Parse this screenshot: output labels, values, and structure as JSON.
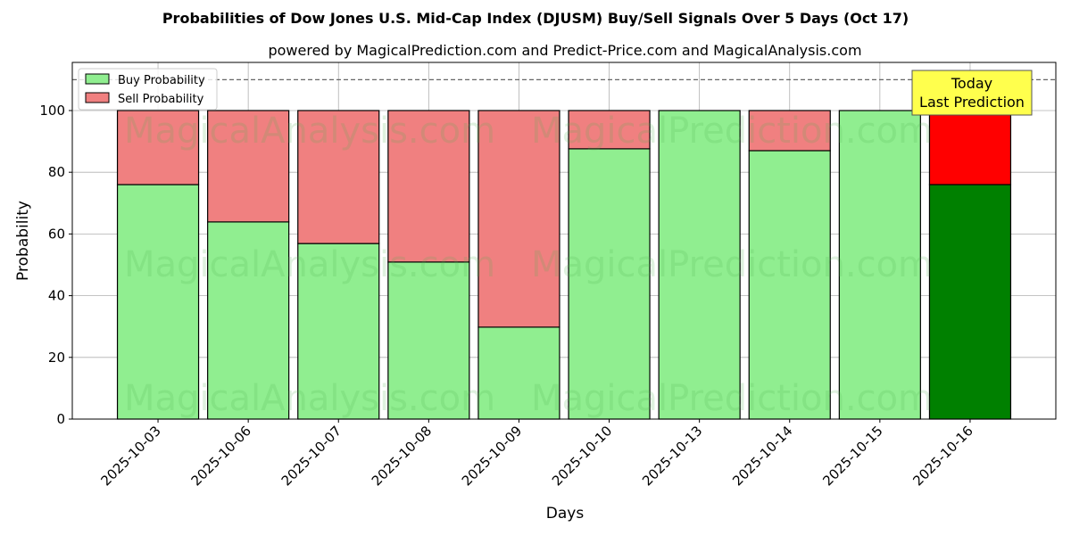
{
  "chart_data": {
    "type": "bar",
    "stacked": true,
    "title": "Probabilities of Dow Jones U.S. Mid-Cap Index (DJUSM) Buy/Sell Signals Over 5 Days (Oct 17)",
    "subtitle": "powered by MagicalPrediction.com and Predict-Price.com and MagicalAnalysis.com",
    "xlabel": "Days",
    "ylabel": "Probability",
    "ylim": [
      0,
      115.6
    ],
    "xlim": [
      -0.95,
      9.95
    ],
    "yticks": [
      0,
      20,
      40,
      60,
      80,
      100
    ],
    "grid": true,
    "legend_position": "top-left",
    "categories": [
      "2025-10-03",
      "2025-10-06",
      "2025-10-07",
      "2025-10-08",
      "2025-10-09",
      "2025-10-10",
      "2025-10-13",
      "2025-10-14",
      "2025-10-15",
      "2025-10-16"
    ],
    "series": [
      {
        "name": "Buy Probability",
        "color": "#90ee90",
        "values": [
          76.0,
          63.9,
          56.9,
          50.9,
          29.8,
          87.6,
          100,
          87.0,
          100,
          76.0
        ]
      },
      {
        "name": "Sell Probability",
        "color": "#f08080",
        "values": [
          24.0,
          36.1,
          43.1,
          49.1,
          70.2,
          12.4,
          0,
          13.0,
          0,
          24.0
        ]
      }
    ],
    "highlight": {
      "index": 9,
      "buy_color": "#008000",
      "sell_color": "#ff0000"
    },
    "reference_line": {
      "y": 110,
      "style": "dashed"
    },
    "annotation": {
      "lines": [
        "Today",
        "Last Prediction"
      ],
      "background": "#ffff4d"
    },
    "watermarks": [
      "MagicalAnalysis.com",
      "MagicalPrediction.com"
    ]
  }
}
